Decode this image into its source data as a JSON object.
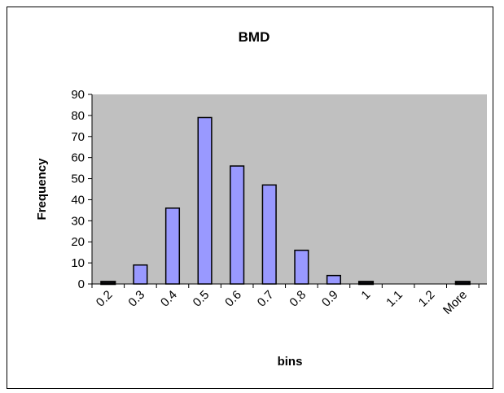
{
  "chart_data": {
    "type": "bar",
    "title": "BMD",
    "xlabel": "bins",
    "ylabel": "Frequency",
    "categories": [
      "0.2",
      "0.3",
      "0.4",
      "0.5",
      "0.6",
      "0.7",
      "0.8",
      "0.9",
      "1",
      "1.1",
      "1.2",
      "More"
    ],
    "values": [
      1,
      9,
      36,
      79,
      56,
      47,
      16,
      4,
      1,
      0,
      0,
      1
    ],
    "ylim": [
      0,
      90
    ],
    "yticks": [
      0,
      10,
      20,
      30,
      40,
      50,
      60,
      70,
      80,
      90
    ],
    "grid": false,
    "legend": "none",
    "colors": {
      "plot_background": "#c0c0c0",
      "bar_fill": "#9999ff",
      "bar_stroke": "#000000"
    }
  }
}
